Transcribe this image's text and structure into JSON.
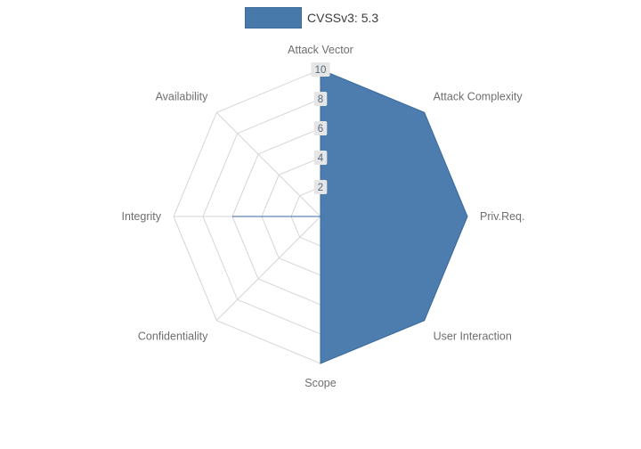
{
  "legend": {
    "label": "CVSSv3: 5.3"
  },
  "colors": {
    "series_fill": "#4779ab",
    "series_stroke": "#3a6a9e",
    "grid": "#d6d6d6",
    "axis_label": "#6e6e6e",
    "tick_text": "#55687c",
    "tick_bg": "#e6e6e6",
    "legend_text": "#3b3b3b"
  },
  "chart_data": {
    "type": "radar",
    "title": "CVSSv3: 5.3",
    "categories": [
      "Attack Vector",
      "Attack Complexity",
      "Priv.Req.",
      "User Interaction",
      "Scope",
      "Confidentiality",
      "Integrity",
      "Availability"
    ],
    "values": [
      10,
      10,
      10,
      10,
      10,
      0,
      6,
      0
    ],
    "ticks": [
      2,
      4,
      6,
      8,
      10
    ],
    "rmax": 10,
    "grid": true,
    "legend_position": "top",
    "legend_entries": [
      "CVSSv3: 5.3"
    ]
  }
}
